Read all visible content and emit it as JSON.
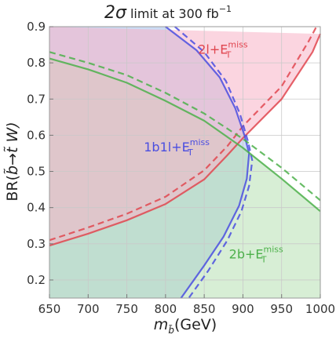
{
  "chart_data": {
    "type": "line",
    "title": {
      "prefix": "2",
      "sigma": "σ",
      "main": " limit at 300 fb",
      "superscript": "−1"
    },
    "xlabel": {
      "m": "m",
      "sub": "b̃",
      "unit": "(GeV)"
    },
    "ylabel": {
      "pre": "BR(",
      "b": "b̃",
      "arrow": "→",
      "t": "t̃",
      "post": " W)"
    },
    "xlim": [
      650,
      1000
    ],
    "ylim": [
      0.15,
      0.9
    ],
    "x_ticks": [
      650,
      700,
      750,
      800,
      850,
      900,
      950,
      1000
    ],
    "x_tick_labels": [
      "650",
      "700",
      "750",
      "800",
      "850",
      "900",
      "950",
      "1000"
    ],
    "y_ticks": [
      0.2,
      0.3,
      0.4,
      0.5,
      0.6,
      0.7,
      0.8,
      0.9
    ],
    "y_tick_labels": [
      "0.2",
      "0.3",
      "0.4",
      "0.5",
      "0.6",
      "0.7",
      "0.8",
      "0.9"
    ],
    "grid": true,
    "series": [
      {
        "name": "2l+E_T^miss",
        "label_main": "2l+E",
        "label_sub": "T",
        "label_sup": "miss",
        "color": "#e0464f",
        "fill": "#f7b3c7",
        "solid": [
          [
            650,
            0.295
          ],
          [
            700,
            0.328
          ],
          [
            750,
            0.365
          ],
          [
            800,
            0.41
          ],
          [
            850,
            0.478
          ],
          [
            880,
            0.545
          ],
          [
            900,
            0.592
          ],
          [
            950,
            0.7
          ],
          [
            990,
            0.83
          ],
          [
            1000,
            0.88
          ]
        ],
        "dashed": [
          [
            650,
            0.31
          ],
          [
            700,
            0.345
          ],
          [
            750,
            0.383
          ],
          [
            800,
            0.43
          ],
          [
            850,
            0.503
          ],
          [
            880,
            0.57
          ],
          [
            900,
            0.625
          ],
          [
            950,
            0.735
          ],
          [
            985,
            0.86
          ],
          [
            995,
            0.9
          ]
        ]
      },
      {
        "name": "1b1l+E_T^miss",
        "label_main": "1b1l+E",
        "label_sub": "T",
        "label_sup": "miss",
        "color": "#4a4ee0",
        "fill": "#b7cdef",
        "solid": [
          [
            800,
            0.9
          ],
          [
            840,
            0.835
          ],
          [
            870,
            0.76
          ],
          [
            890,
            0.675
          ],
          [
            902,
            0.6
          ],
          [
            908,
            0.55
          ],
          [
            905,
            0.48
          ],
          [
            895,
            0.405
          ],
          [
            875,
            0.32
          ],
          [
            850,
            0.24
          ],
          [
            820,
            0.15
          ]
        ],
        "dashed": [
          [
            812,
            0.9
          ],
          [
            850,
            0.83
          ],
          [
            878,
            0.75
          ],
          [
            896,
            0.66
          ],
          [
            907,
            0.58
          ],
          [
            912,
            0.53
          ],
          [
            908,
            0.46
          ],
          [
            898,
            0.39
          ],
          [
            880,
            0.31
          ],
          [
            855,
            0.225
          ],
          [
            830,
            0.15
          ]
        ]
      },
      {
        "name": "2b+E_T^miss",
        "label_main": "2b+E",
        "label_sub": "T",
        "label_sup": "miss",
        "color": "#4cb04a",
        "fill": "#b6e0b2",
        "solid": [
          [
            650,
            0.812
          ],
          [
            700,
            0.782
          ],
          [
            750,
            0.745
          ],
          [
            800,
            0.695
          ],
          [
            850,
            0.64
          ],
          [
            900,
            0.565
          ],
          [
            950,
            0.48
          ],
          [
            1000,
            0.39
          ]
        ],
        "dashed": [
          [
            650,
            0.83
          ],
          [
            700,
            0.8
          ],
          [
            750,
            0.766
          ],
          [
            800,
            0.717
          ],
          [
            850,
            0.66
          ],
          [
            900,
            0.59
          ],
          [
            950,
            0.51
          ],
          [
            1000,
            0.42
          ]
        ]
      }
    ]
  }
}
